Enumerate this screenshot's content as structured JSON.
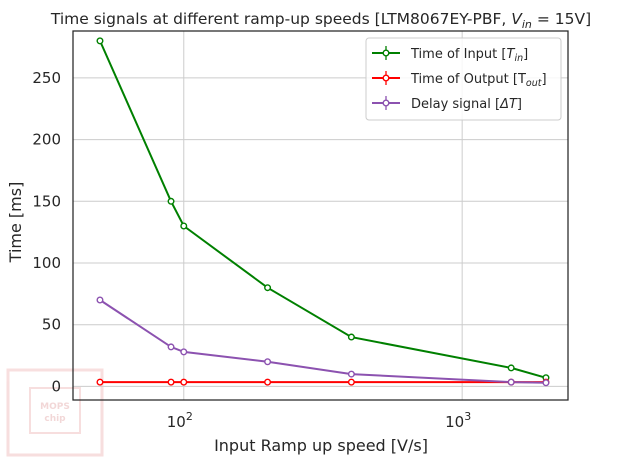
{
  "chart_data": {
    "type": "line",
    "title": "Time signals at different ramp-up speeds [LTM8067EY-PBF, V_in = 15V]",
    "title_parts": {
      "prefix": "Time signals at different ramp-up speeds [LTM8067EY-PBF, ",
      "var": "V",
      "sub": "in",
      "suffix": " = 15V]"
    },
    "xlabel": "Input Ramp up speed [V/s]",
    "ylabel": "Time [ms]",
    "xscale": "log",
    "xlim": [
      40,
      2400
    ],
    "ylim": [
      -11,
      288
    ],
    "x_ticks": [
      {
        "value": 100,
        "base": "10",
        "exp": "2"
      },
      {
        "value": 1000,
        "base": "10",
        "exp": "3"
      }
    ],
    "y_ticks": [
      0,
      50,
      100,
      150,
      200,
      250
    ],
    "grid": true,
    "legend_position": "top-right",
    "x": [
      50,
      90,
      100,
      200,
      400,
      1500,
      2000
    ],
    "series": [
      {
        "name": "Time of Input [T_in]",
        "legend_parts": {
          "prefix": "Time of Input [",
          "var": "T",
          "sub": "in",
          "suffix": "]"
        },
        "color": "#008000",
        "values": [
          280,
          150,
          130,
          80,
          40,
          15,
          7
        ]
      },
      {
        "name": "Time of Output [T_out]",
        "legend_parts": {
          "prefix": "Time of Output [T",
          "var": "",
          "sub": "out",
          "suffix": "]"
        },
        "color": "#ff0000",
        "values": [
          3.5,
          3.5,
          3.5,
          3.5,
          3.5,
          3.5,
          3.5
        ]
      },
      {
        "name": "Delay signal [ΔT]",
        "legend_parts": {
          "prefix": "Delay signal [",
          "var": "ΔT",
          "sub": "",
          "suffix": "]"
        },
        "color": "#8c52b0",
        "values": [
          70,
          32,
          28,
          20,
          10,
          3.5,
          3
        ]
      }
    ]
  },
  "watermark": {
    "line1": "MOPS",
    "line2": "chip"
  }
}
